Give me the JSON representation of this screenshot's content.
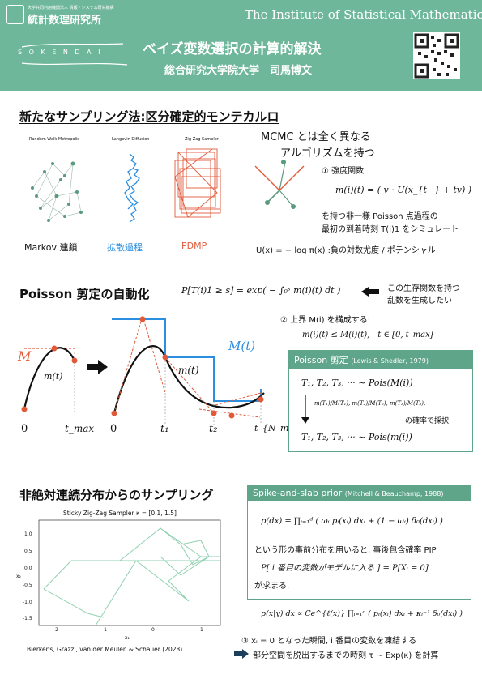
{
  "header": {
    "org_small_1": "大学共同利用機関法人 情報・システム研究機構",
    "org_name": "統計数理研究所",
    "english_name": "The Institute of Statistical Mathematics",
    "sokendai": "S O K E N D A I",
    "title": "ベイズ変数選択の計算的解決",
    "author": "総合研究大学院大学　司馬博文"
  },
  "section1": {
    "title": "新たなサンプリング法:区分確定的モンテカルロ",
    "panel_titles": [
      "Random Walk Metropolis",
      "Langevin Diffusion",
      "Zig-Zag Sampler"
    ],
    "labels": [
      "Markov 連鎖",
      "拡散過程",
      "PDMP"
    ],
    "mcmc_line1": "MCMC とは全く異なる",
    "mcmc_line2": "アルゴリズムを持つ",
    "intensity": "① 強度関数",
    "intensity_formula": "m(i)(t) = ( v · U(x_{t−} + tv) )",
    "poisson_line1": "を持つ非一様 Poisson 点過程の",
    "poisson_line2": "最初の到着時刻 T(i)1 をシミュレート",
    "potential": "U(x) = − log π(x) :負の対数尤度 / ポテンシャル"
  },
  "section2": {
    "title": "Poisson 剪定の自動化",
    "survival": "P[T(i)1 ≥ s] = exp( − ∫₀ˢ m(i)(t) dt )",
    "arrow_note_1": "この生存関数を持つ",
    "arrow_note_2": "乱数を生成したい",
    "upper_bound": "② 上界 M(i) を構成する:",
    "upper_formula": "m(i)(t) ≤ M(i)(t),　t ∈ [0, t_max]",
    "plot_labels": {
      "M": "M",
      "m": "m(t)",
      "Mt": "M(t)",
      "zero": "0",
      "tmax": "t_max",
      "t1": "t₁",
      "t2": "t₂",
      "tN": "t_{N_max}"
    },
    "box_title": "Poisson 剪定",
    "box_cite": "(Lewis & Shedler, 1979)",
    "box_line1": "T₁, T₂, T₃, ··· ∼ Pois(M(i))",
    "box_ratio": "m(T₁)/M(T₁), m(T₂)/M(T₂), m(T₃)/M(T₃), ···",
    "box_accept": "の確率で採択",
    "box_line3": "T₁, T₂, T₃, ··· ∼ Pois(m(i))"
  },
  "section3": {
    "title": "非絶対連続分布からのサンプリング",
    "plot_title": "Sticky Zig-Zag Sampler κ = [0.1, 1.5]",
    "x_ticks": [
      "-2",
      "-1",
      "0",
      "1"
    ],
    "y_ticks": [
      "1.0",
      "0.5",
      "0.0",
      "-0.5",
      "-1.0",
      "-1.5"
    ],
    "xlabel": "x₁",
    "ylabel": "x₂",
    "citation": "Bierkens, Grazzi, van der Meulen & Schauer (2023)",
    "box_title": "Spike-and-slab prior",
    "box_cite": "(Mitchell & Beauchamp, 1988)",
    "prior_formula": "p(dx) = ∏ᵢ₌₁ᵈ ( ωᵢ pᵢ(xᵢ) dxᵢ + (1 − ωᵢ) δ₀(dxᵢ) )",
    "pip_line": "という形の事前分布を用いると, 事後包含確率 PIP",
    "pip_formula": "P[ i 番目の変数がモデルに入る ] = P[Xᵢ = 0]",
    "pip_end": "が求まる.",
    "posterior_formula": "p(x|y) dx ∝ Ce^{ℓ(x)} ∏ᵢ₌₁ᵈ ( pᵢ(xᵢ) dxᵢ + κᵢ⁻¹ δ₀(dxᵢ) )",
    "step3": "③ xᵢ = 0 となった瞬間, i 番目の変数を凍結する",
    "step3b": "部分空間を脱出するまでの時刻 τ ∼ Exp(κ) を計算"
  },
  "colors": {
    "header": "#6fb79b",
    "accent_green": "#5fa58a",
    "pdmp_orange": "#e05a3a",
    "diffusion_blue": "#2b8ee0",
    "bound_blue": "#2b8ee0"
  }
}
